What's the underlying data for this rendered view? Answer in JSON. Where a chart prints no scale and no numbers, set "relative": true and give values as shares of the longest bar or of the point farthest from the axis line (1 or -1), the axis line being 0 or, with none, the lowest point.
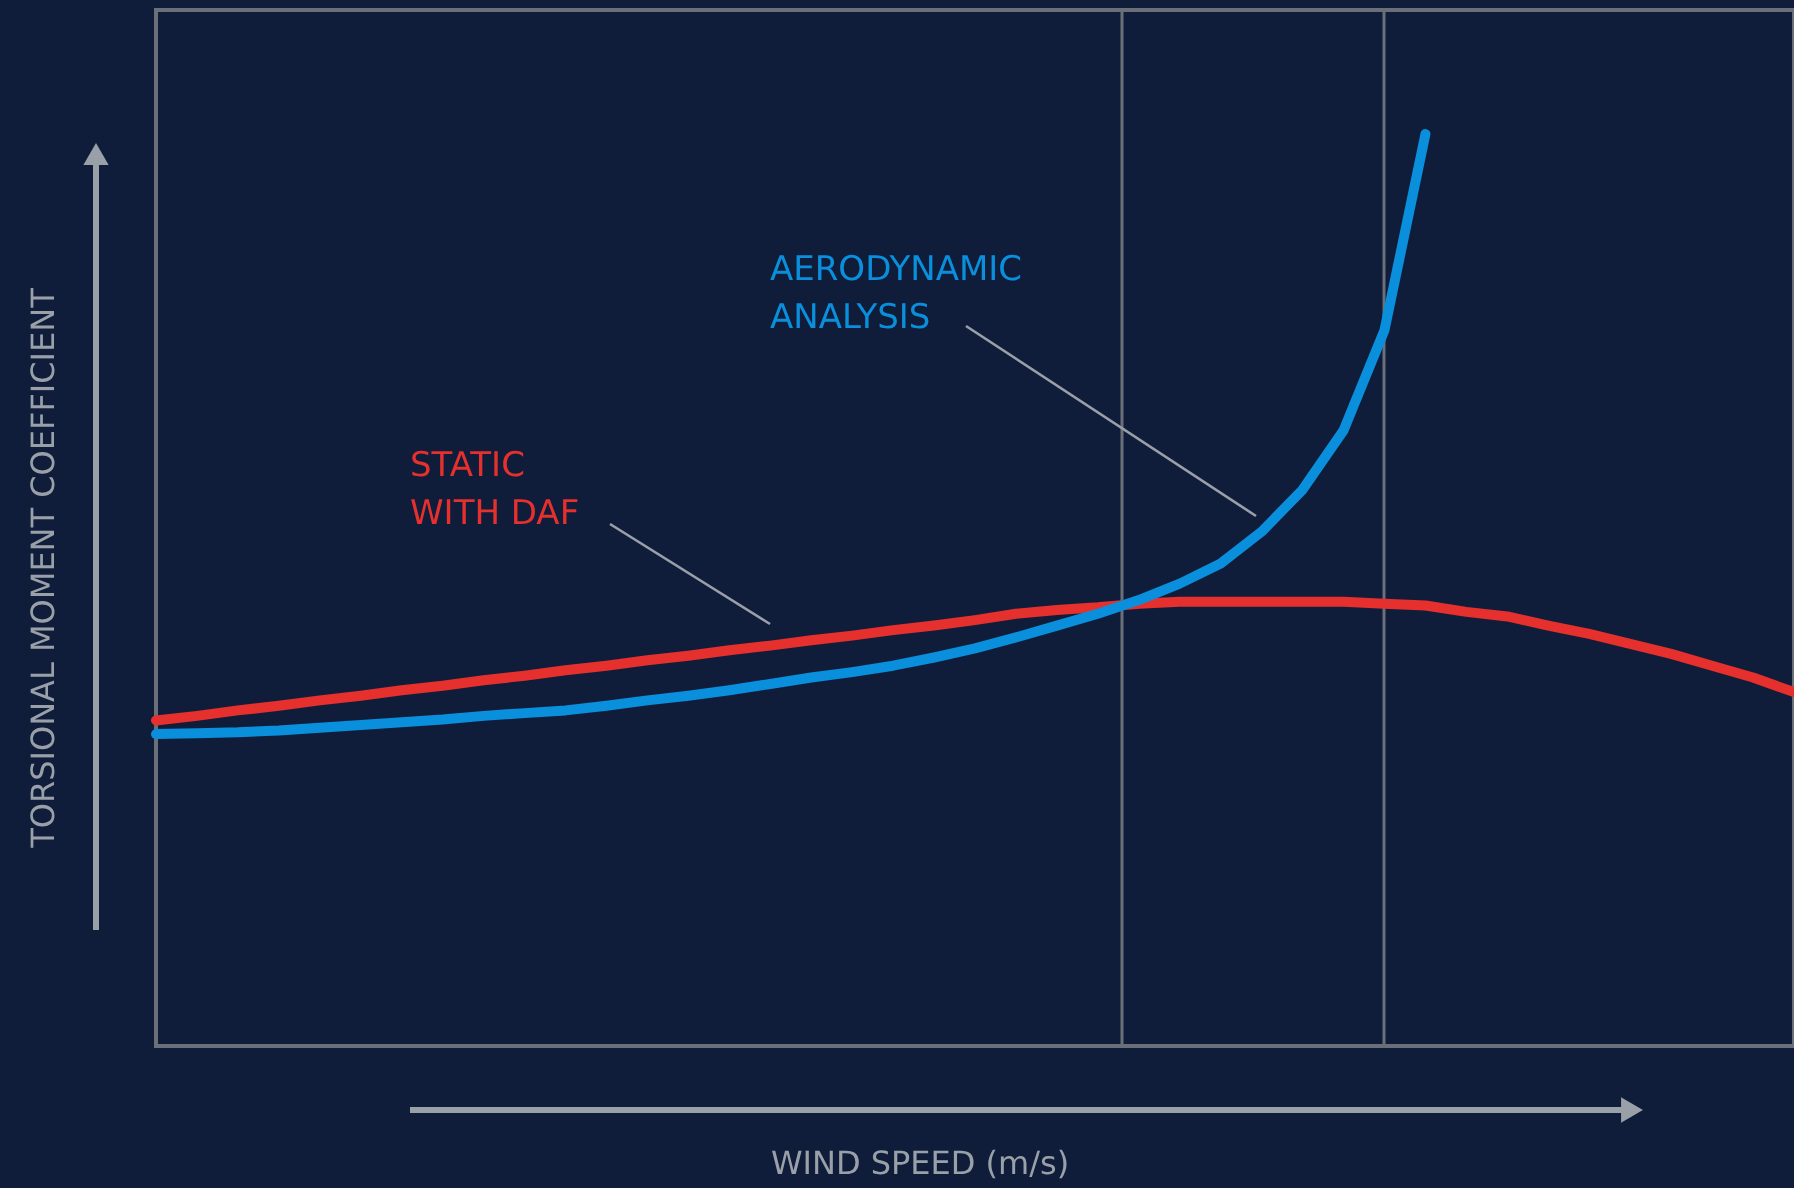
{
  "chart_data": {
    "type": "line",
    "relative": true,
    "xlabel": "WIND SPEED (m/s)",
    "ylabel": "TORSIONAL MOMENT COEFFICIENT",
    "categories": [
      null,
      null,
      null,
      null,
      null,
      null,
      null,
      null,
      null,
      null,
      null,
      null,
      null,
      null,
      null,
      null,
      null,
      null,
      null,
      null,
      null,
      null,
      null,
      null,
      null,
      null,
      null,
      null,
      null,
      null,
      null,
      null,
      null,
      null,
      null,
      null,
      null,
      null,
      null,
      null,
      null
    ],
    "series": [
      {
        "name": "STATIC\nWITH DAF",
        "color": "#e5302d",
        "values": [
          0.357,
          0.362,
          0.368,
          0.373,
          0.379,
          0.384,
          0.39,
          0.395,
          0.401,
          0.406,
          0.412,
          0.417,
          0.423,
          0.428,
          0.434,
          0.439,
          0.445,
          0.45,
          0.456,
          0.461,
          0.467,
          0.474,
          0.478,
          0.481,
          0.485,
          0.487,
          0.487,
          0.487,
          0.487,
          0.487,
          0.485,
          0.483,
          0.476,
          0.471,
          0.461,
          0.452,
          0.441,
          0.43,
          0.417,
          0.404,
          0.388
        ]
      },
      {
        "name": "AERODYNAMIC\nANALYSIS",
        "color": "#0a8fdc",
        "values": [
          0.342,
          0.343,
          0.344,
          0.346,
          0.349,
          0.352,
          0.355,
          0.358,
          0.362,
          0.365,
          0.368,
          0.373,
          0.379,
          0.384,
          0.39,
          0.397,
          0.404,
          0.41,
          0.417,
          0.426,
          0.436,
          0.448,
          0.461,
          0.474,
          0.489,
          0.507,
          0.529,
          0.564,
          0.61,
          0.675,
          0.785,
          1.0,
          null,
          null,
          null,
          null,
          null,
          null,
          null,
          null,
          null
        ]
      }
    ],
    "legend": false
  }
}
